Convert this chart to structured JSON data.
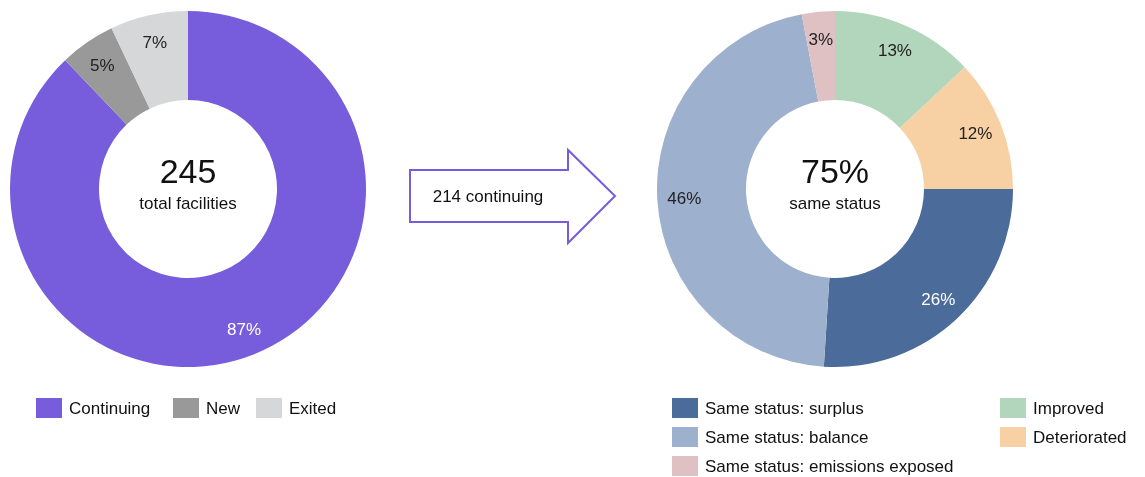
{
  "chart_data": [
    {
      "type": "donut",
      "categories": [
        "Continuing",
        "New",
        "Exited"
      ],
      "values": [
        87,
        5,
        7
      ],
      "colors": [
        "#775ddb",
        "#999999",
        "#d6d7d9"
      ],
      "value_labels": [
        "87%",
        "5%",
        "7%"
      ],
      "legend": "bottom",
      "annotations": [
        "245",
        "total facilities",
        "214 continuing"
      ]
    },
    {
      "type": "donut",
      "categories": [
        "Same status: surplus",
        "Same status: balance",
        "Same status: emissions exposed",
        "Improved",
        "Deteriorated"
      ],
      "values": [
        26,
        46,
        3,
        13,
        12
      ],
      "colors": [
        "#4b6b9b",
        "#9db0cd",
        "#dfc1c4",
        "#b2d6bb",
        "#f7d0a3"
      ],
      "value_labels": [
        "26%",
        "46%",
        "3%",
        "13%",
        "12%"
      ],
      "legend": "bottom",
      "annotations": [
        "75%",
        "same status"
      ]
    }
  ]
}
